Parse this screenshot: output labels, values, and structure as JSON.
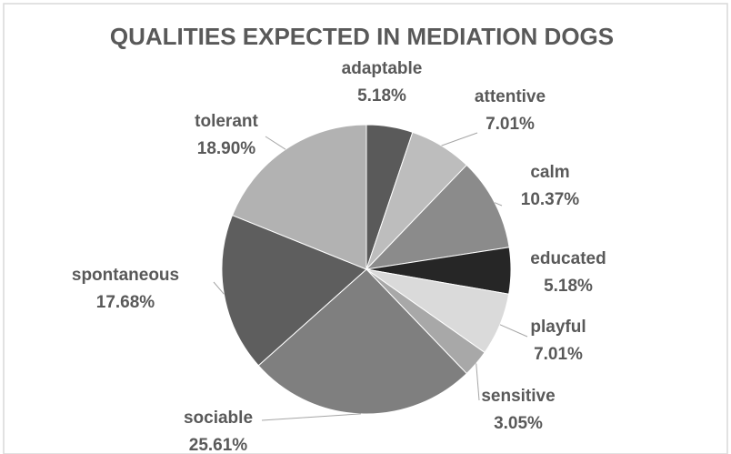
{
  "chart_data": {
    "type": "pie",
    "title": "QUALITIES EXPECTED IN MEDIATION DOGS",
    "categories": [
      "adaptable",
      "attentive",
      "calm",
      "educated",
      "playful",
      "sensitive",
      "sociable",
      "spontaneous",
      "tolerant"
    ],
    "values": [
      5.18,
      7.01,
      10.37,
      5.18,
      7.01,
      3.05,
      25.61,
      17.68,
      18.9
    ],
    "value_labels": [
      "5.18%",
      "7.01%",
      "10.37%",
      "5.18%",
      "7.01%",
      "3.05%",
      "25.61%",
      "17.68%",
      "18.90%"
    ],
    "colors": [
      "#5a5a5a",
      "#bdbdbd",
      "#8b8b8b",
      "#262626",
      "#dadada",
      "#a8a8a8",
      "#7f7f7f",
      "#5e5e5e",
      "#b2b2b2"
    ]
  }
}
